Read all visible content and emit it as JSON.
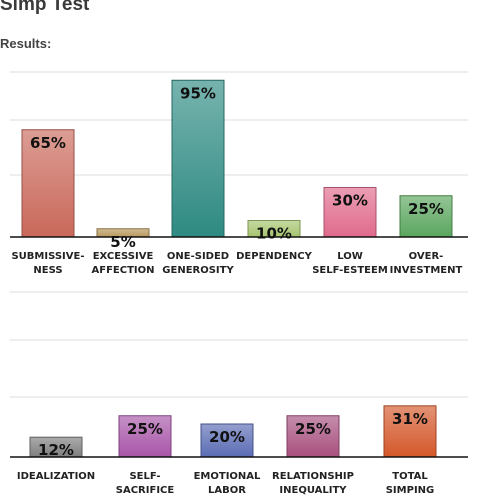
{
  "page": {
    "title": "Simp Test",
    "results_label": "Results:"
  },
  "chart_data": [
    {
      "type": "bar",
      "categories": [
        [
          "SUBMISSIVE-",
          "NESS"
        ],
        [
          "EXCESSIVE",
          "AFFECTION"
        ],
        [
          "ONE-SIDED",
          "GENEROSITY"
        ],
        [
          "DEPENDENCY"
        ],
        [
          "LOW",
          "SELF-ESTEEM"
        ],
        [
          "OVER-",
          "INVESTMENT"
        ]
      ],
      "values": [
        65,
        5,
        95,
        10,
        30,
        25
      ],
      "value_labels": [
        "65%",
        "5%",
        "95%",
        "10%",
        "30%",
        "25%"
      ],
      "colors": [
        "#c9685a",
        "#b8985c",
        "#2e8a82",
        "#a6c46e",
        "#e06a8c",
        "#5aa65e"
      ],
      "ylim": [
        0,
        100
      ],
      "grid": true
    },
    {
      "type": "bar",
      "categories": [
        [
          "IDEALIZATION"
        ],
        [
          "SELF-",
          "SACRIFICE"
        ],
        [
          "EMOTIONAL",
          "LABOR"
        ],
        [
          "RELATIONSHIP",
          "INEQUALITY"
        ],
        [
          "TOTAL",
          "SIMPING"
        ]
      ],
      "values": [
        12,
        25,
        20,
        25,
        31
      ],
      "value_labels": [
        "12%",
        "25%",
        "20%",
        "25%",
        "31%"
      ],
      "colors": [
        "#7e7e7e",
        "#a855a8",
        "#5a6cb4",
        "#a8507e",
        "#d4582a"
      ],
      "ylim": [
        0,
        100
      ],
      "grid": true
    }
  ]
}
